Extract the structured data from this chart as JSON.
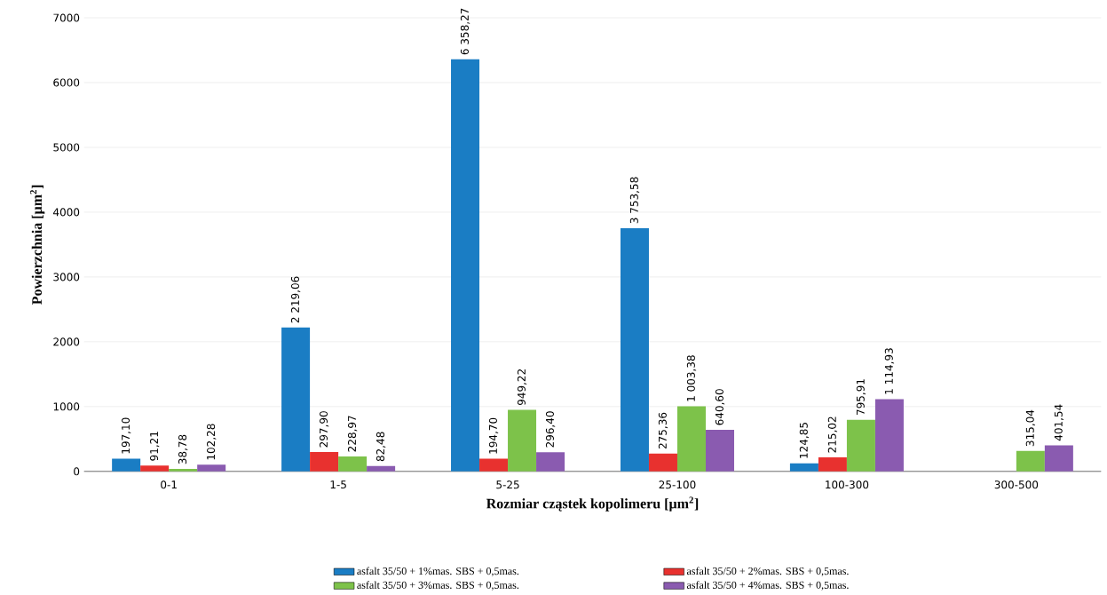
{
  "chart_data": {
    "type": "bar",
    "xlabel": "Rozmiar cząstek kopolimeru [µm$^{2}$]",
    "ylabel": "Powierzchnia [µm$^{2}$]",
    "categories": [
      "0-1",
      "1-5",
      "5-25",
      "25-100",
      "100-300",
      "300-500"
    ],
    "series": [
      {
        "name": "asfalt 35/50 + 1%mas. SBS + 0,5mas.",
        "color": "#1a7dc4",
        "values": [
          197.1,
          2219.06,
          6358.27,
          3753.58,
          124.85,
          null
        ],
        "value_labels": [
          "197,10",
          "2 219,06",
          "6 358,27",
          "3 753,58",
          "124,85",
          null
        ]
      },
      {
        "name": "asfalt 35/50 + 2%mas. SBS + 0,5mas.",
        "color": "#e8312f",
        "values": [
          91.21,
          297.9,
          194.7,
          275.36,
          215.02,
          null
        ],
        "value_labels": [
          "91,21",
          "297,90",
          "194,70",
          "275,36",
          "215,02",
          null
        ]
      },
      {
        "name": "asfalt 35/50 + 3%mas. SBS + 0,5mas.",
        "color": "#7dc24a",
        "values": [
          38.78,
          228.97,
          949.22,
          1003.38,
          795.91,
          315.04
        ],
        "value_labels": [
          "38,78",
          "228,97",
          "949,22",
          "1 003,38",
          "795,91",
          "315,04"
        ]
      },
      {
        "name": "asfalt 35/50 + 4%mas. SBS + 0,5mas.",
        "color": "#8a5bb0",
        "values": [
          102.28,
          82.48,
          296.4,
          640.6,
          1114.93,
          401.54
        ],
        "value_labels": [
          "102,28",
          "82,48",
          "296,40",
          "640,60",
          "1 114,93",
          "401,54"
        ]
      }
    ],
    "ylim": [
      0,
      7000
    ],
    "yticks": [
      0,
      1000,
      2000,
      3000,
      4000,
      5000,
      6000,
      7000
    ],
    "grid": "y",
    "legend": "bottom"
  }
}
